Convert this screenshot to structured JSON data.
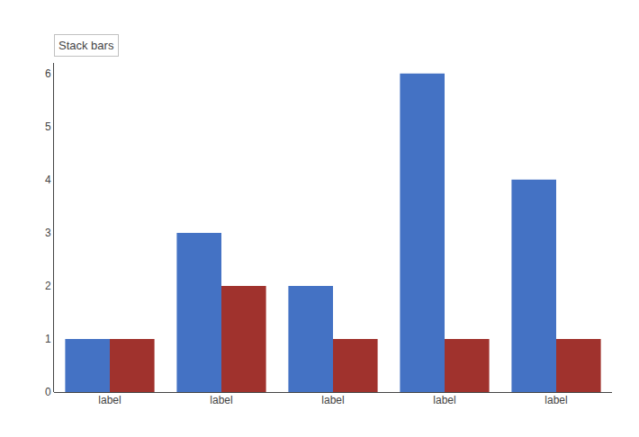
{
  "chart_data": {
    "type": "bar",
    "categories": [
      "label",
      "label",
      "label",
      "label",
      "label"
    ],
    "series": [
      {
        "color": "#4472C4",
        "values": [
          1,
          3,
          2,
          6,
          4
        ]
      },
      {
        "color": "#A0322D",
        "values": [
          1,
          2,
          1,
          1,
          1
        ]
      }
    ],
    "ylim": [
      0,
      6.2
    ],
    "yticks": [
      0,
      1,
      2,
      3,
      4,
      5,
      6
    ],
    "grid": false,
    "annotations": [
      "Stack bars"
    ]
  }
}
